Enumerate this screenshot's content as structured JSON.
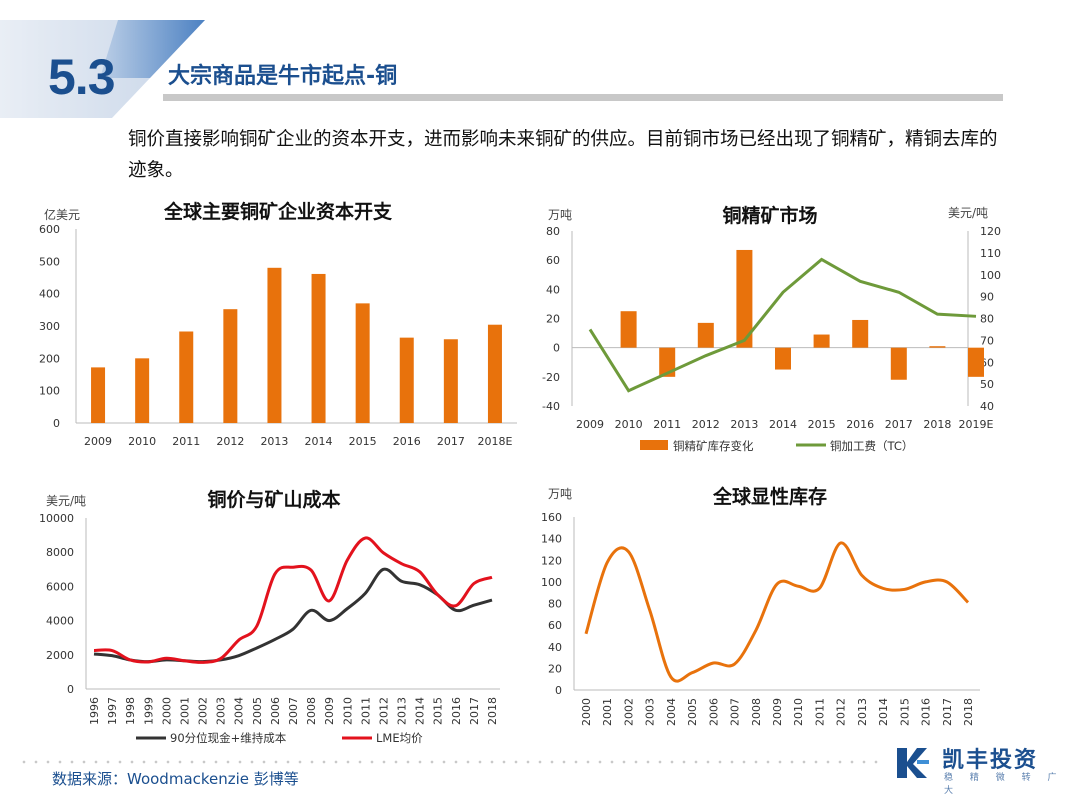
{
  "section": {
    "number": "5.3",
    "title": "大宗商品是牛市起点-铜"
  },
  "intro": "铜价直接影响铜矿企业的资本开支，进而影响未来铜矿的供应。目前铜市场已经出现了铜精矿，精铜去库的迹象。",
  "footer": {
    "source": "数据来源：Woodmackenzie 彭博等",
    "brand": "凯丰投资",
    "slogan": "稳 精 微 转 广 大"
  },
  "colors": {
    "accent": "#1b4f8f",
    "orange": "#e8720c",
    "green": "#6e9a3a",
    "dark": "#333333",
    "red": "#e3121d"
  },
  "chart_data": [
    {
      "type": "bar",
      "title": "全球主要铜矿企业资本开支",
      "ylabel": "亿美元",
      "categories": [
        "2009",
        "2010",
        "2011",
        "2012",
        "2013",
        "2014",
        "2015",
        "2016",
        "2017",
        "2018E"
      ],
      "values": [
        172,
        200,
        283,
        352,
        480,
        461,
        370,
        264,
        259,
        304
      ],
      "ylim": [
        0,
        600
      ],
      "yticks": [
        "0",
        "100",
        "200",
        "300",
        "400",
        "500",
        "600"
      ]
    },
    {
      "type": "bar",
      "title": "铜精矿市场",
      "ylabel": "万吨",
      "y2label": "美元/吨",
      "categories": [
        "2009",
        "2010",
        "2011",
        "2012",
        "2013",
        "2014",
        "2015",
        "2016",
        "2017",
        "2018",
        "2019E"
      ],
      "series": [
        {
          "name": "铜精矿库存变化",
          "type": "bar",
          "axis": "left",
          "values": [
            0,
            25,
            -20,
            17,
            67,
            -15,
            9,
            19,
            -22,
            1,
            -20
          ]
        },
        {
          "name": "铜加工费（TC）",
          "type": "line",
          "axis": "right",
          "values": [
            75,
            47,
            55,
            63,
            70,
            92,
            107,
            97,
            92,
            82,
            81
          ]
        }
      ],
      "ylim": [
        -40,
        80
      ],
      "y2lim": [
        40,
        120
      ],
      "yticks": [
        "-40",
        "-20",
        "0",
        "20",
        "40",
        "60",
        "80"
      ],
      "y2ticks": [
        "40",
        "50",
        "60",
        "70",
        "80",
        "90",
        "100",
        "110",
        "120"
      ],
      "legend": "bottom"
    },
    {
      "type": "line",
      "title": "铜价与矿山成本",
      "ylabel": "美元/吨",
      "categories": [
        "1996",
        "1997",
        "1998",
        "1999",
        "2000",
        "2001",
        "2002",
        "2003",
        "2004",
        "2005",
        "2006",
        "2007",
        "2008",
        "2009",
        "2010",
        "2011",
        "2012",
        "2013",
        "2014",
        "2015",
        "2016",
        "2017",
        "2018"
      ],
      "series": [
        {
          "name": "90分位现金+维持成本",
          "values": [
            2050,
            1950,
            1700,
            1600,
            1700,
            1650,
            1600,
            1700,
            1950,
            2400,
            2900,
            3500,
            4600,
            4000,
            4700,
            5600,
            7000,
            6300,
            6100,
            5500,
            4600,
            4900,
            5200
          ]
        },
        {
          "name": "LME均价",
          "values": [
            2250,
            2250,
            1700,
            1580,
            1800,
            1650,
            1560,
            1780,
            2860,
            3680,
            6730,
            7120,
            6950,
            5150,
            7540,
            8830,
            7960,
            7330,
            6860,
            5510,
            4870,
            6170,
            6530
          ]
        }
      ],
      "ylim": [
        0,
        10000
      ],
      "yticks": [
        "0",
        "2000",
        "4000",
        "6000",
        "8000",
        "10000"
      ],
      "legend": "bottom"
    },
    {
      "type": "line",
      "title": "全球显性库存",
      "ylabel": "万吨",
      "categories": [
        "2000",
        "2001",
        "2002",
        "2003",
        "2004",
        "2005",
        "2006",
        "2007",
        "2008",
        "2009",
        "2010",
        "2011",
        "2012",
        "2013",
        "2014",
        "2015",
        "2016",
        "2017",
        "2018"
      ],
      "values": [
        52,
        118,
        128,
        74,
        12,
        16,
        25,
        24,
        55,
        98,
        96,
        94,
        136,
        106,
        94,
        93,
        100,
        100,
        81
      ],
      "ylim": [
        0,
        160
      ],
      "yticks": [
        "0",
        "20",
        "40",
        "60",
        "80",
        "100",
        "120",
        "140",
        "160"
      ]
    }
  ]
}
